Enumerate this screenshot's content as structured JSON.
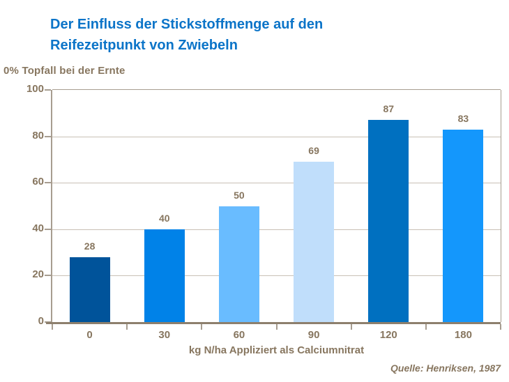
{
  "header": {
    "title_line1": "Der Einfluss der Stickstoffmenge auf den",
    "title_line2": "Reifezeitpunkt von Zwiebeln"
  },
  "footer": {
    "source": "Quelle: Henriksen, 1987"
  },
  "chart_data": {
    "type": "bar",
    "title": "Der Einfluss der Stickstoffmenge auf den Reifezeitpunkt von Zwiebeln",
    "categories": [
      "0",
      "30",
      "60",
      "90",
      "120",
      "180"
    ],
    "values": [
      28,
      40,
      50,
      69,
      87,
      83
    ],
    "bar_colors": [
      "#00539a",
      "#0082e8",
      "#69bcff",
      "#c0defb",
      "#0070c0",
      "#1497fc"
    ],
    "xlabel": "kg N/ha Appliziert als Calciumnitrat",
    "ylabel": "0% Topfall bei der Ernte",
    "ylim": [
      0,
      100
    ],
    "yticks": [
      0,
      20,
      40,
      60,
      80,
      100
    ],
    "gridlines": [
      20,
      40,
      60,
      80
    ],
    "grid": "horizontal",
    "legend": "none",
    "source": "Quelle: Henriksen, 1987"
  },
  "colors": {
    "title_blue": "#0b74c8",
    "text_brown": "#87765f",
    "gridline": "#c8c0b5",
    "axis": "#a79d90",
    "baseline": "#8d7f6d",
    "background": "#ffffff"
  }
}
